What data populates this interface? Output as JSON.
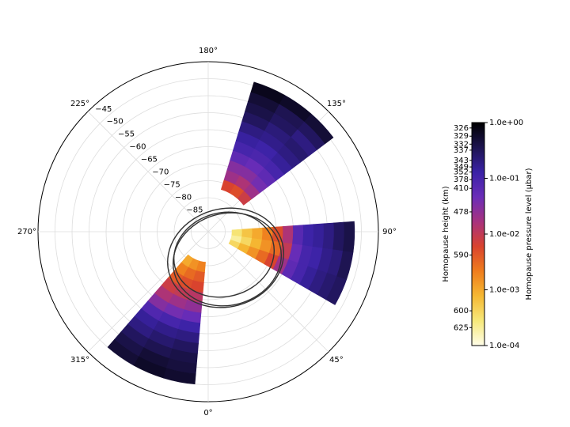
{
  "chart_data": {
    "type": "polar-heatmap",
    "thetaticks": [
      {
        "value": 0,
        "label": "0°"
      },
      {
        "value": 45,
        "label": "45°"
      },
      {
        "value": 90,
        "label": "90°"
      },
      {
        "value": 135,
        "label": "135°"
      },
      {
        "value": 180,
        "label": "180°"
      },
      {
        "value": 225,
        "label": "225°"
      },
      {
        "value": 270,
        "label": "270°"
      },
      {
        "value": 315,
        "label": "315°"
      }
    ],
    "rlim": [
      -90,
      -40
    ],
    "rticks": [
      {
        "value": -85,
        "label": "−85"
      },
      {
        "value": -80,
        "label": "−80"
      },
      {
        "value": -75,
        "label": "−75"
      },
      {
        "value": -70,
        "label": "−70"
      },
      {
        "value": -65,
        "label": "−65"
      },
      {
        "value": -60,
        "label": "−60"
      },
      {
        "value": -55,
        "label": "−55"
      },
      {
        "value": -50,
        "label": "−50"
      },
      {
        "value": -45,
        "label": "−45"
      }
    ],
    "grid": true,
    "log_scale": true,
    "clim": [
      0.0001,
      1
    ],
    "colormap": [
      "#fffde8",
      "#f6e87a",
      "#f5b833",
      "#ef7d1d",
      "#d9432e",
      "#a8327e",
      "#6a2db8",
      "#3a22a6",
      "#1d1450",
      "#000000"
    ],
    "cticks": [
      {
        "value": 0.0001,
        "label": "1.0e-04"
      },
      {
        "value": 0.001,
        "label": "1.0e-03"
      },
      {
        "value": 0.01,
        "label": "1.0e-02"
      },
      {
        "value": 0.1,
        "label": "1.0e-01"
      },
      {
        "value": 1,
        "label": "1.0e+00"
      }
    ],
    "cticks_left": [
      {
        "value": 0.8,
        "label": "326"
      },
      {
        "value": 0.57,
        "label": "329"
      },
      {
        "value": 0.41,
        "label": "332"
      },
      {
        "value": 0.32,
        "label": "337"
      },
      {
        "value": 0.21,
        "label": "343"
      },
      {
        "value": 0.16,
        "label": "349"
      },
      {
        "value": 0.13,
        "label": "352"
      },
      {
        "value": 0.095,
        "label": "378"
      },
      {
        "value": 0.066,
        "label": "410"
      },
      {
        "value": 0.025,
        "label": "478"
      },
      {
        "value": 0.0042,
        "label": "590"
      },
      {
        "value": 0.00042,
        "label": "600"
      },
      {
        "value": 0.00021,
        "label": "625"
      }
    ],
    "clabel": "Homopause pressure level (µbar)",
    "clabel_left": "Homopause height (km)",
    "swaths": [
      {
        "lon": [
          127,
          139,
          151,
          163
        ],
        "lat": [
          -77,
          -74,
          -71,
          -68,
          -65,
          -62,
          -59,
          -56,
          -53,
          -50,
          -47,
          -44
        ],
        "values": [
          [
            0.008,
            0.02,
            0.04,
            0.06,
            0.1,
            0.15,
            0.2,
            0.25,
            0.2,
            0.3,
            0.5
          ],
          [
            0.005,
            0.015,
            0.03,
            0.05,
            0.09,
            0.12,
            0.18,
            0.22,
            0.3,
            0.35,
            0.6
          ],
          [
            0.006,
            0.02,
            0.03,
            0.06,
            0.1,
            0.14,
            0.2,
            0.3,
            0.4,
            0.5,
            0.7
          ]
        ]
      },
      {
        "lon": [
          60,
          71,
          82,
          94
        ],
        "lat": [
          -83,
          -80,
          -77,
          -74,
          -71,
          -68,
          -65,
          -62,
          -59,
          -56,
          -53,
          -50,
          -47
        ],
        "values": [
          [
            0.0004,
            0.0008,
            0.0015,
            0.003,
            0.006,
            0.02,
            0.06,
            0.1,
            0.15,
            0.2,
            0.25,
            0.3
          ],
          [
            0.0002,
            0.0004,
            0.0008,
            0.0015,
            0.003,
            0.01,
            0.05,
            0.1,
            0.12,
            0.18,
            0.22,
            0.35
          ],
          [
            0.0003,
            0.0006,
            0.001,
            0.002,
            0.005,
            0.015,
            0.07,
            0.12,
            0.15,
            0.2,
            0.3,
            0.4
          ]
        ]
      },
      {
        "lon": [
          319,
          331,
          343,
          355
        ],
        "lat": [
          -81,
          -78,
          -75,
          -72,
          -69,
          -66,
          -63,
          -60,
          -57,
          -54,
          -51,
          -48,
          -45
        ],
        "values": [
          [
            0.001,
            0.002,
            0.004,
            0.008,
            0.015,
            0.03,
            0.08,
            0.15,
            0.2,
            0.3,
            0.4,
            0.5
          ],
          [
            0.0015,
            0.003,
            0.005,
            0.01,
            0.02,
            0.04,
            0.1,
            0.18,
            0.25,
            0.35,
            0.5,
            0.6
          ],
          [
            0.002,
            0.004,
            0.006,
            0.012,
            0.025,
            0.05,
            0.12,
            0.2,
            0.3,
            0.4,
            0.45,
            0.55
          ]
        ]
      }
    ]
  }
}
